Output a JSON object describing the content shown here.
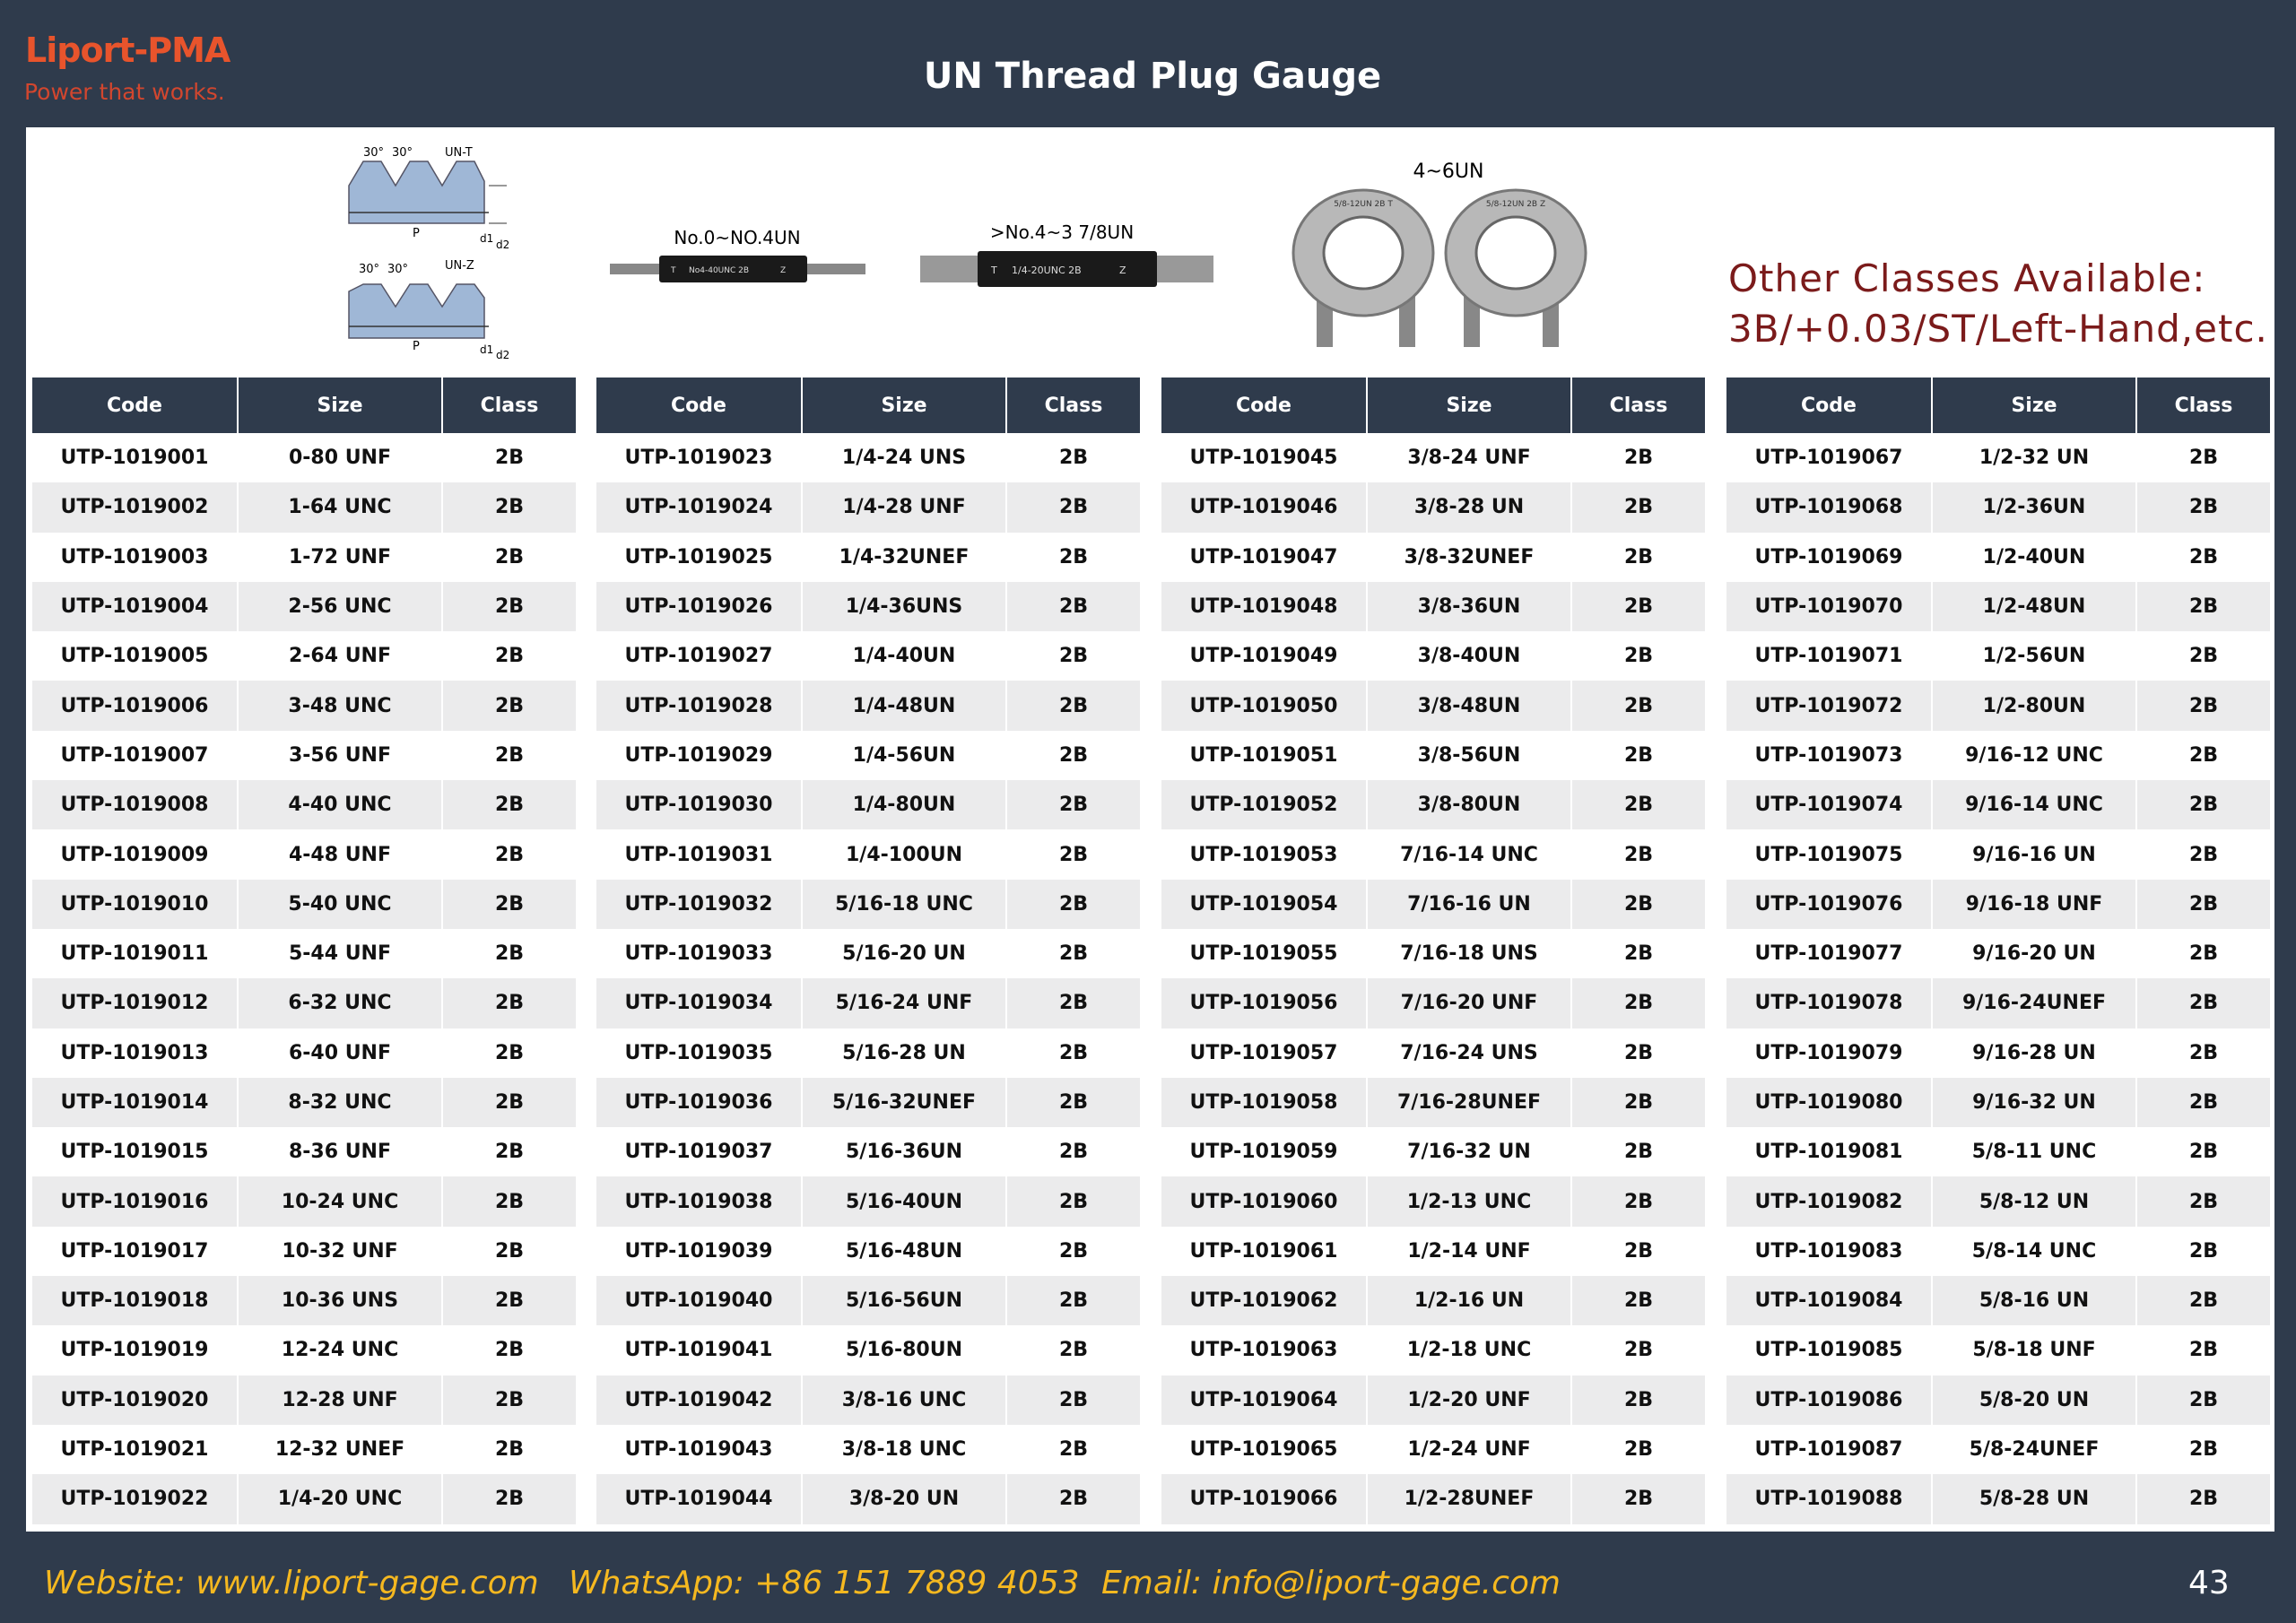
{
  "header": {
    "logo": "Liport-PMA",
    "tagline": "Power that works.",
    "title": "UN Thread Plug Gauge"
  },
  "images": {
    "diagram_top": [
      "30°",
      "30°",
      "UN-T",
      "P",
      "d1",
      "d2"
    ],
    "diagram_bottom": [
      "30°",
      "30°",
      "UN-Z",
      "P",
      "d1",
      "d2"
    ],
    "gauge_small": {
      "caption": "No.0~NO.4UN",
      "marking": [
        "T",
        "No4-40UNC 2B",
        "Z"
      ]
    },
    "gauge_medium": {
      "caption": ">No.4~3 7/8UN",
      "marking": [
        "T",
        "1/4-20UNC 2B",
        "Z"
      ]
    },
    "gauge_ring": {
      "caption": "4~6UN",
      "marking": [
        "5/8-12UN 2B T",
        "5/8-12UN 2B Z"
      ]
    }
  },
  "notice": [
    "Other Classes Available:",
    "3B/+0.03/ST/Left-Hand,etc."
  ],
  "tables": [
    {
      "columns": [
        "Code",
        "Size",
        "Class"
      ],
      "rows": [
        [
          "UTP-1019001",
          "0-80 UNF",
          "2B"
        ],
        [
          "UTP-1019002",
          "1-64 UNC",
          "2B"
        ],
        [
          "UTP-1019003",
          "1-72 UNF",
          "2B"
        ],
        [
          "UTP-1019004",
          "2-56 UNC",
          "2B"
        ],
        [
          "UTP-1019005",
          "2-64 UNF",
          "2B"
        ],
        [
          "UTP-1019006",
          "3-48 UNC",
          "2B"
        ],
        [
          "UTP-1019007",
          "3-56 UNF",
          "2B"
        ],
        [
          "UTP-1019008",
          "4-40 UNC",
          "2B"
        ],
        [
          "UTP-1019009",
          "4-48 UNF",
          "2B"
        ],
        [
          "UTP-1019010",
          "5-40 UNC",
          "2B"
        ],
        [
          "UTP-1019011",
          "5-44 UNF",
          "2B"
        ],
        [
          "UTP-1019012",
          "6-32 UNC",
          "2B"
        ],
        [
          "UTP-1019013",
          "6-40 UNF",
          "2B"
        ],
        [
          "UTP-1019014",
          "8-32 UNC",
          "2B"
        ],
        [
          "UTP-1019015",
          "8-36 UNF",
          "2B"
        ],
        [
          "UTP-1019016",
          "10-24 UNC",
          "2B"
        ],
        [
          "UTP-1019017",
          "10-32 UNF",
          "2B"
        ],
        [
          "UTP-1019018",
          "10-36 UNS",
          "2B"
        ],
        [
          "UTP-1019019",
          "12-24 UNC",
          "2B"
        ],
        [
          "UTP-1019020",
          "12-28 UNF",
          "2B"
        ],
        [
          "UTP-1019021",
          "12-32 UNEF",
          "2B"
        ],
        [
          "UTP-1019022",
          "1/4-20 UNC",
          "2B"
        ]
      ]
    },
    {
      "columns": [
        "Code",
        "Size",
        "Class"
      ],
      "rows": [
        [
          "UTP-1019023",
          "1/4-24 UNS",
          "2B"
        ],
        [
          "UTP-1019024",
          "1/4-28 UNF",
          "2B"
        ],
        [
          "UTP-1019025",
          "1/4-32UNEF",
          "2B"
        ],
        [
          "UTP-1019026",
          "1/4-36UNS",
          "2B"
        ],
        [
          "UTP-1019027",
          "1/4-40UN",
          "2B"
        ],
        [
          "UTP-1019028",
          "1/4-48UN",
          "2B"
        ],
        [
          "UTP-1019029",
          "1/4-56UN",
          "2B"
        ],
        [
          "UTP-1019030",
          "1/4-80UN",
          "2B"
        ],
        [
          "UTP-1019031",
          "1/4-100UN",
          "2B"
        ],
        [
          "UTP-1019032",
          "5/16-18 UNC",
          "2B"
        ],
        [
          "UTP-1019033",
          "5/16-20 UN",
          "2B"
        ],
        [
          "UTP-1019034",
          "5/16-24 UNF",
          "2B"
        ],
        [
          "UTP-1019035",
          "5/16-28 UN",
          "2B"
        ],
        [
          "UTP-1019036",
          "5/16-32UNEF",
          "2B"
        ],
        [
          "UTP-1019037",
          "5/16-36UN",
          "2B"
        ],
        [
          "UTP-1019038",
          "5/16-40UN",
          "2B"
        ],
        [
          "UTP-1019039",
          "5/16-48UN",
          "2B"
        ],
        [
          "UTP-1019040",
          "5/16-56UN",
          "2B"
        ],
        [
          "UTP-1019041",
          "5/16-80UN",
          "2B"
        ],
        [
          "UTP-1019042",
          "3/8-16 UNC",
          "2B"
        ],
        [
          "UTP-1019043",
          "3/8-18 UNC",
          "2B"
        ],
        [
          "UTP-1019044",
          "3/8-20 UN",
          "2B"
        ]
      ]
    },
    {
      "columns": [
        "Code",
        "Size",
        "Class"
      ],
      "rows": [
        [
          "UTP-1019045",
          "3/8-24 UNF",
          "2B"
        ],
        [
          "UTP-1019046",
          "3/8-28 UN",
          "2B"
        ],
        [
          "UTP-1019047",
          "3/8-32UNEF",
          "2B"
        ],
        [
          "UTP-1019048",
          "3/8-36UN",
          "2B"
        ],
        [
          "UTP-1019049",
          "3/8-40UN",
          "2B"
        ],
        [
          "UTP-1019050",
          "3/8-48UN",
          "2B"
        ],
        [
          "UTP-1019051",
          "3/8-56UN",
          "2B"
        ],
        [
          "UTP-1019052",
          "3/8-80UN",
          "2B"
        ],
        [
          "UTP-1019053",
          "7/16-14 UNC",
          "2B"
        ],
        [
          "UTP-1019054",
          "7/16-16 UN",
          "2B"
        ],
        [
          "UTP-1019055",
          "7/16-18 UNS",
          "2B"
        ],
        [
          "UTP-1019056",
          "7/16-20 UNF",
          "2B"
        ],
        [
          "UTP-1019057",
          "7/16-24 UNS",
          "2B"
        ],
        [
          "UTP-1019058",
          "7/16-28UNEF",
          "2B"
        ],
        [
          "UTP-1019059",
          "7/16-32 UN",
          "2B"
        ],
        [
          "UTP-1019060",
          "1/2-13 UNC",
          "2B"
        ],
        [
          "UTP-1019061",
          "1/2-14 UNF",
          "2B"
        ],
        [
          "UTP-1019062",
          "1/2-16 UN",
          "2B"
        ],
        [
          "UTP-1019063",
          "1/2-18 UNC",
          "2B"
        ],
        [
          "UTP-1019064",
          "1/2-20 UNF",
          "2B"
        ],
        [
          "UTP-1019065",
          "1/2-24 UNF",
          "2B"
        ],
        [
          "UTP-1019066",
          "1/2-28UNEF",
          "2B"
        ]
      ]
    },
    {
      "columns": [
        "Code",
        "Size",
        "Class"
      ],
      "rows": [
        [
          "UTP-1019067",
          "1/2-32 UN",
          "2B"
        ],
        [
          "UTP-1019068",
          "1/2-36UN",
          "2B"
        ],
        [
          "UTP-1019069",
          "1/2-40UN",
          "2B"
        ],
        [
          "UTP-1019070",
          "1/2-48UN",
          "2B"
        ],
        [
          "UTP-1019071",
          "1/2-56UN",
          "2B"
        ],
        [
          "UTP-1019072",
          "1/2-80UN",
          "2B"
        ],
        [
          "UTP-1019073",
          "9/16-12 UNC",
          "2B"
        ],
        [
          "UTP-1019074",
          "9/16-14 UNC",
          "2B"
        ],
        [
          "UTP-1019075",
          "9/16-16 UN",
          "2B"
        ],
        [
          "UTP-1019076",
          "9/16-18 UNF",
          "2B"
        ],
        [
          "UTP-1019077",
          "9/16-20 UN",
          "2B"
        ],
        [
          "UTP-1019078",
          "9/16-24UNEF",
          "2B"
        ],
        [
          "UTP-1019079",
          "9/16-28 UN",
          "2B"
        ],
        [
          "UTP-1019080",
          "9/16-32 UN",
          "2B"
        ],
        [
          "UTP-1019081",
          "5/8-11 UNC",
          "2B"
        ],
        [
          "UTP-1019082",
          "5/8-12 UN",
          "2B"
        ],
        [
          "UTP-1019083",
          "5/8-14 UNC",
          "2B"
        ],
        [
          "UTP-1019084",
          "5/8-16 UN",
          "2B"
        ],
        [
          "UTP-1019085",
          "5/8-18 UNF",
          "2B"
        ],
        [
          "UTP-1019086",
          "5/8-20 UN",
          "2B"
        ],
        [
          "UTP-1019087",
          "5/8-24UNEF",
          "2B"
        ],
        [
          "UTP-1019088",
          "5/8-28 UN",
          "2B"
        ]
      ]
    }
  ],
  "footer": {
    "website": "Website: www.liport-gage.com",
    "whatsapp": "WhatsApp: +86 151 7889 4053",
    "email": "Email: info@liport-gage.com",
    "page": "43"
  }
}
